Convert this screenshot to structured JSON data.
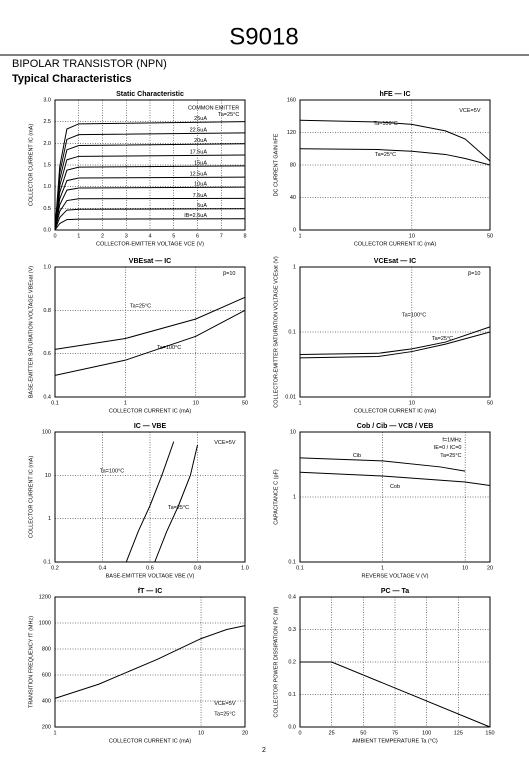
{
  "header": {
    "title": "S9018",
    "subtitle": "BIPOLAR TRANSISTOR (NPN)",
    "section": "Typical Characteristics"
  },
  "page_number": "2",
  "chart_data": [
    {
      "type": "line",
      "title": "Static Characteristic",
      "xlabel": "COLLECTOR-EMITTER VOLTAGE VCE (V)",
      "ylabel": "COLLECTOR CURRENT IC (mA)",
      "xlim": [
        0,
        8
      ],
      "xticks": [
        0,
        1,
        2,
        3,
        4,
        5,
        6,
        7,
        8
      ],
      "ylim": [
        0,
        3
      ],
      "yticks": [
        {
          "value": 0,
          "label": "0.0"
        },
        0.5,
        {
          "value": 1,
          "label": "1.0"
        },
        1.5,
        {
          "value": 2,
          "label": "2.0"
        },
        2.5,
        {
          "value": 3,
          "label": "3.0"
        }
      ],
      "grid": true,
      "annotations": [
        "COMMON EMITTER",
        "Ta=25°C"
      ],
      "series": [
        {
          "name": "25uA",
          "color": "#000000",
          "x": [
            0,
            0.2,
            0.5,
            1,
            8
          ],
          "values": [
            0,
            1.47,
            2.33,
            2.45,
            2.5
          ]
        },
        {
          "name": "22.5uA",
          "color": "#000000",
          "x": [
            0,
            0.2,
            0.5,
            1,
            8
          ],
          "values": [
            0,
            1.32,
            2.09,
            2.2,
            2.24
          ]
        },
        {
          "name": "20uA",
          "color": "#000000",
          "x": [
            0,
            0.2,
            0.5,
            1,
            8
          ],
          "values": [
            0,
            1.17,
            1.85,
            1.95,
            1.99
          ]
        },
        {
          "name": "17.5uA",
          "color": "#000000",
          "x": [
            0,
            0.2,
            0.5,
            1,
            8
          ],
          "values": [
            0,
            1.02,
            1.62,
            1.7,
            1.73
          ]
        },
        {
          "name": "15uA",
          "color": "#000000",
          "x": [
            0,
            0.2,
            0.5,
            1,
            8
          ],
          "values": [
            0,
            0.87,
            1.38,
            1.45,
            1.48
          ]
        },
        {
          "name": "12.5uA",
          "color": "#000000",
          "x": [
            0,
            0.2,
            0.5,
            1,
            8
          ],
          "values": [
            0,
            0.72,
            1.14,
            1.2,
            1.22
          ]
        },
        {
          "name": "10uA",
          "color": "#000000",
          "x": [
            0,
            0.2,
            0.5,
            1,
            8
          ],
          "values": [
            0,
            0.58,
            0.92,
            0.97,
            0.99
          ]
        },
        {
          "name": "7.5uA",
          "color": "#000000",
          "x": [
            0,
            0.2,
            0.5,
            1,
            8
          ],
          "values": [
            0,
            0.43,
            0.68,
            0.72,
            0.73
          ]
        },
        {
          "name": "5uA",
          "color": "#000000",
          "x": [
            0,
            0.2,
            0.5,
            1,
            8
          ],
          "values": [
            0,
            0.29,
            0.46,
            0.48,
            0.49
          ]
        },
        {
          "name": "IB=2.5uA",
          "color": "#000000",
          "x": [
            0,
            0.2,
            0.5,
            1,
            8
          ],
          "values": [
            0,
            0.15,
            0.24,
            0.25,
            0.26
          ]
        }
      ]
    },
    {
      "type": "line",
      "title": "hFE — IC",
      "xlabel": "COLLECTOR CURRENT IC (mA)",
      "ylabel": "DC CURRENT GAIN hFE",
      "xlog": true,
      "xlim": [
        1,
        50
      ],
      "xticks": [
        1,
        10,
        50
      ],
      "ylim": [
        0,
        160
      ],
      "yticks": [
        0,
        40,
        80,
        120,
        160
      ],
      "grid": true,
      "annotations": [
        "VCE=5V"
      ],
      "series": [
        {
          "name": "Ta=100°C",
          "color": "#000000",
          "x": [
            1,
            5,
            10,
            20,
            30,
            50
          ],
          "values": [
            135,
            133,
            130,
            122,
            112,
            85
          ]
        },
        {
          "name": "Ta=25°C",
          "color": "#000000",
          "x": [
            1,
            5,
            10,
            20,
            30,
            50
          ],
          "values": [
            100,
            99,
            97,
            93,
            88,
            80
          ]
        }
      ]
    },
    {
      "type": "line",
      "title": "VBEsat — IC",
      "xlabel": "COLLECTOR CURRENT IC (mA)",
      "ylabel": "BASE-EMITTER SATURATION VOLTAGE VBEsat (V)",
      "xlog": true,
      "xlim": [
        0.1,
        50
      ],
      "xticks": [
        0.1,
        1,
        10,
        50
      ],
      "ylim": [
        0.4,
        1
      ],
      "yticks": [
        0.4,
        0.6,
        0.8,
        {
          "value": 1,
          "label": "1.0"
        }
      ],
      "grid": true,
      "annotations": [
        "β=10"
      ],
      "series": [
        {
          "name": "Ta=25°C",
          "color": "#000000",
          "x": [
            0.1,
            1,
            10,
            50
          ],
          "values": [
            0.62,
            0.67,
            0.76,
            0.86
          ]
        },
        {
          "name": "Ta=100°C",
          "color": "#000000",
          "x": [
            0.1,
            1,
            10,
            50
          ],
          "values": [
            0.5,
            0.57,
            0.68,
            0.8
          ]
        }
      ]
    },
    {
      "type": "line",
      "title": "VCEsat — IC",
      "xlabel": "COLLECTOR CURRENT IC (mA)",
      "ylabel": "COLLECTOR-EMITTER SATURATION VOLTAGE VCEsat (V)",
      "xlog": true,
      "xlim": [
        1,
        50
      ],
      "xticks": [
        1,
        10,
        50
      ],
      "ylog": true,
      "ylim": [
        0.01,
        1
      ],
      "yticks": [
        0.01,
        0.1,
        1
      ],
      "grid": true,
      "annotations": [
        "β=10"
      ],
      "series": [
        {
          "name": "Ta=100°C",
          "color": "#000000",
          "x": [
            1,
            5,
            10,
            20,
            50
          ],
          "values": [
            0.045,
            0.047,
            0.055,
            0.07,
            0.12
          ]
        },
        {
          "name": "Ta=25°C",
          "color": "#000000",
          "x": [
            1,
            5,
            10,
            20,
            50
          ],
          "values": [
            0.04,
            0.042,
            0.05,
            0.065,
            0.1
          ]
        }
      ]
    },
    {
      "type": "line",
      "title": "IC — VBE",
      "xlabel": "BASE-EMITTER VOLTAGE VBE (V)",
      "ylabel": "COLLECTOR CURRENT IC (mA)",
      "xlim": [
        0.2,
        1
      ],
      "xticks": [
        0.2,
        0.4,
        0.6,
        0.8,
        {
          "value": 1,
          "label": "1.0"
        }
      ],
      "ylog": true,
      "ylim": [
        0.1,
        100
      ],
      "yticks": [
        0.1,
        1,
        10,
        100
      ],
      "grid": true,
      "annotations": [
        "VCE=5V"
      ],
      "series": [
        {
          "name": "Ta=100°C",
          "color": "#000000",
          "x": [
            0.5,
            0.55,
            0.6,
            0.65,
            0.7
          ],
          "values": [
            0.1,
            0.5,
            2,
            10,
            60
          ]
        },
        {
          "name": "Ta=25°C",
          "color": "#000000",
          "x": [
            0.62,
            0.67,
            0.72,
            0.77,
            0.8
          ],
          "values": [
            0.1,
            0.5,
            2,
            10,
            50
          ]
        }
      ]
    },
    {
      "type": "line",
      "title": "Cob / Cib — VCB / VEB",
      "xlabel": "REVERSE VOLTAGE V (V)",
      "ylabel": "CAPACITANCE C (pF)",
      "xlog": true,
      "xlim": [
        0.1,
        20
      ],
      "xticks": [
        0.1,
        1,
        10,
        20
      ],
      "ylog": true,
      "ylim": [
        0.1,
        10
      ],
      "yticks": [
        0.1,
        1,
        10
      ],
      "grid": true,
      "annotations": [
        "f=1MHz",
        "IE=0 / IC=0",
        "Ta=25°C"
      ],
      "series": [
        {
          "name": "Cib",
          "color": "#000000",
          "x": [
            0.1,
            1,
            5,
            10
          ],
          "values": [
            4,
            3.6,
            2.9,
            2.5
          ]
        },
        {
          "name": "Cob",
          "color": "#000000",
          "x": [
            0.1,
            1,
            10,
            20
          ],
          "values": [
            2.4,
            2.1,
            1.7,
            1.5
          ]
        }
      ]
    },
    {
      "type": "line",
      "title": "fT — IC",
      "xlabel": "COLLECTOR CURRENT IC (mA)",
      "ylabel": "TRANSITION FREQUENCY fT (MHz)",
      "xlog": true,
      "xlim": [
        1,
        20
      ],
      "xticks": [
        1,
        10,
        20
      ],
      "ylim": [
        200,
        1200
      ],
      "yticks": [
        200,
        400,
        600,
        800,
        1000,
        1200
      ],
      "grid": true,
      "annotations": [
        "VCE=5V",
        "Ta=25°C"
      ],
      "series": [
        {
          "color": "#000000",
          "x": [
            1,
            2,
            5,
            10,
            15,
            20
          ],
          "values": [
            420,
            530,
            720,
            880,
            950,
            980
          ]
        }
      ]
    },
    {
      "type": "line",
      "title": "PC — Ta",
      "xlabel": "AMBIENT TEMPERATURE Ta (°C)",
      "ylabel": "COLLECTOR POWER DISSIPATION PC (W)",
      "xlim": [
        0,
        150
      ],
      "xticks": [
        0,
        25,
        50,
        75,
        100,
        125,
        150
      ],
      "ylim": [
        0,
        0.4
      ],
      "yticks": [
        {
          "value": 0,
          "label": "0.0"
        },
        0.1,
        0.2,
        0.3,
        0.4
      ],
      "grid": true,
      "series": [
        {
          "color": "#000000",
          "x": [
            0,
            25,
            150
          ],
          "values": [
            0.2,
            0.2,
            0
          ]
        }
      ]
    }
  ]
}
